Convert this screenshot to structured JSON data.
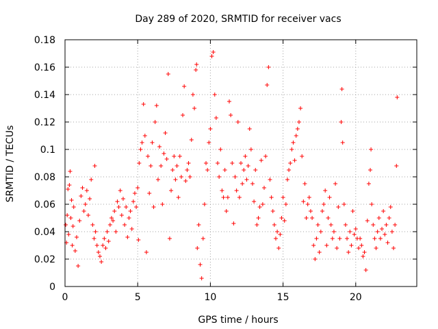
{
  "chart_data": {
    "type": "scatter",
    "title": "Day 289 of 2020, SRMTID for receiver vacs",
    "xlabel": "GPS time / hours",
    "ylabel": "SRMTID / TECUs",
    "xlim": [
      0,
      24.2
    ],
    "ylim": [
      0,
      0.18
    ],
    "xticks": [
      0,
      5,
      10,
      15,
      20
    ],
    "xtick_labels": [
      "0",
      "5",
      "10",
      "15",
      "20"
    ],
    "yticks": [
      0,
      0.02,
      0.04,
      0.06,
      0.08,
      0.1,
      0.12,
      0.14,
      0.16,
      0.18
    ],
    "ytick_labels": [
      "0",
      "0.02",
      "0.04",
      "0.06",
      "0.08",
      "0.1",
      "0.12",
      "0.14",
      "0.16",
      "0.18"
    ],
    "grid": true,
    "marker": "+",
    "color": "#ff0000",
    "series": [
      {
        "name": "SRMTID",
        "points": [
          [
            0.05,
            0.045
          ],
          [
            0.1,
            0.032
          ],
          [
            0.15,
            0.052
          ],
          [
            0.2,
            0.071
          ],
          [
            0.25,
            0.038
          ],
          [
            0.3,
            0.074
          ],
          [
            0.35,
            0.084
          ],
          [
            0.4,
            0.05
          ],
          [
            0.45,
            0.063
          ],
          [
            0.5,
            0.03
          ],
          [
            0.55,
            0.044
          ],
          [
            0.6,
            0.058
          ],
          [
            0.7,
            0.026
          ],
          [
            0.8,
            0.036
          ],
          [
            0.9,
            0.015
          ],
          [
            1.0,
            0.048
          ],
          [
            1.1,
            0.066
          ],
          [
            1.2,
            0.072
          ],
          [
            1.3,
            0.055
          ],
          [
            1.4,
            0.06
          ],
          [
            1.5,
            0.07
          ],
          [
            1.6,
            0.052
          ],
          [
            1.7,
            0.064
          ],
          [
            1.8,
            0.078
          ],
          [
            1.9,
            0.045
          ],
          [
            2.0,
            0.035
          ],
          [
            2.05,
            0.088
          ],
          [
            2.1,
            0.04
          ],
          [
            2.2,
            0.03
          ],
          [
            2.3,
            0.025
          ],
          [
            2.4,
            0.022
          ],
          [
            2.5,
            0.018
          ],
          [
            2.6,
            0.03
          ],
          [
            2.7,
            0.035
          ],
          [
            2.8,
            0.028
          ],
          [
            2.9,
            0.04
          ],
          [
            3.0,
            0.033
          ],
          [
            3.1,
            0.045
          ],
          [
            3.2,
            0.05
          ],
          [
            3.3,
            0.048
          ],
          [
            3.4,
            0.055
          ],
          [
            3.5,
            0.04
          ],
          [
            3.6,
            0.062
          ],
          [
            3.7,
            0.058
          ],
          [
            3.8,
            0.07
          ],
          [
            3.9,
            0.052
          ],
          [
            4.0,
            0.064
          ],
          [
            4.1,
            0.045
          ],
          [
            4.2,
            0.058
          ],
          [
            4.3,
            0.036
          ],
          [
            4.4,
            0.05
          ],
          [
            4.5,
            0.055
          ],
          [
            4.6,
            0.042
          ],
          [
            4.7,
            0.062
          ],
          [
            4.8,
            0.068
          ],
          [
            4.9,
            0.058
          ],
          [
            5.0,
            0.072
          ],
          [
            5.05,
            0.034
          ],
          [
            5.1,
            0.09
          ],
          [
            5.2,
            0.1
          ],
          [
            5.3,
            0.105
          ],
          [
            5.4,
            0.133
          ],
          [
            5.5,
            0.11
          ],
          [
            5.6,
            0.025
          ],
          [
            5.7,
            0.095
          ],
          [
            5.8,
            0.068
          ],
          [
            5.9,
            0.088
          ],
          [
            6.0,
            0.105
          ],
          [
            6.1,
            0.058
          ],
          [
            6.2,
            0.12
          ],
          [
            6.3,
            0.132
          ],
          [
            6.4,
            0.078
          ],
          [
            6.5,
            0.102
          ],
          [
            6.6,
            0.088
          ],
          [
            6.7,
            0.06
          ],
          [
            6.8,
            0.097
          ],
          [
            6.9,
            0.112
          ],
          [
            7.0,
            0.093
          ],
          [
            7.1,
            0.155
          ],
          [
            7.2,
            0.035
          ],
          [
            7.3,
            0.07
          ],
          [
            7.4,
            0.085
          ],
          [
            7.5,
            0.095
          ],
          [
            7.6,
            0.078
          ],
          [
            7.7,
            0.088
          ],
          [
            7.8,
            0.065
          ],
          [
            7.9,
            0.095
          ],
          [
            8.0,
            0.08
          ],
          [
            8.1,
            0.125
          ],
          [
            8.2,
            0.146
          ],
          [
            8.3,
            0.077
          ],
          [
            8.4,
            0.085
          ],
          [
            8.5,
            0.09
          ],
          [
            8.6,
            0.08
          ],
          [
            8.7,
            0.107
          ],
          [
            8.8,
            0.14
          ],
          [
            8.9,
            0.13
          ],
          [
            9.0,
            0.158
          ],
          [
            9.05,
            0.162
          ],
          [
            9.1,
            0.028
          ],
          [
            9.2,
            0.045
          ],
          [
            9.3,
            0.016
          ],
          [
            9.4,
            0.006
          ],
          [
            9.5,
            0.035
          ],
          [
            9.6,
            0.06
          ],
          [
            9.7,
            0.09
          ],
          [
            9.8,
            0.085
          ],
          [
            9.9,
            0.105
          ],
          [
            10.0,
            0.115
          ],
          [
            10.1,
            0.168
          ],
          [
            10.2,
            0.171
          ],
          [
            10.3,
            0.14
          ],
          [
            10.4,
            0.123
          ],
          [
            10.5,
            0.09
          ],
          [
            10.6,
            0.08
          ],
          [
            10.7,
            0.1
          ],
          [
            10.8,
            0.07
          ],
          [
            10.9,
            0.065
          ],
          [
            11.0,
            0.085
          ],
          [
            11.1,
            0.055
          ],
          [
            11.2,
            0.065
          ],
          [
            11.3,
            0.135
          ],
          [
            11.4,
            0.125
          ],
          [
            11.5,
            0.09
          ],
          [
            11.6,
            0.046
          ],
          [
            11.7,
            0.08
          ],
          [
            11.8,
            0.07
          ],
          [
            11.9,
            0.12
          ],
          [
            12.0,
            0.065
          ],
          [
            12.1,
            0.09
          ],
          [
            12.2,
            0.075
          ],
          [
            12.3,
            0.085
          ],
          [
            12.4,
            0.095
          ],
          [
            12.5,
            0.078
          ],
          [
            12.6,
            0.088
          ],
          [
            12.7,
            0.115
          ],
          [
            12.8,
            0.1
          ],
          [
            12.9,
            0.075
          ],
          [
            13.0,
            0.062
          ],
          [
            13.1,
            0.085
          ],
          [
            13.2,
            0.045
          ],
          [
            13.3,
            0.05
          ],
          [
            13.4,
            0.058
          ],
          [
            13.5,
            0.092
          ],
          [
            13.6,
            0.06
          ],
          [
            13.7,
            0.072
          ],
          [
            13.8,
            0.095
          ],
          [
            13.9,
            0.147
          ],
          [
            14.0,
            0.16
          ],
          [
            14.1,
            0.078
          ],
          [
            14.2,
            0.065
          ],
          [
            14.3,
            0.055
          ],
          [
            14.4,
            0.045
          ],
          [
            14.5,
            0.035
          ],
          [
            14.6,
            0.04
          ],
          [
            14.7,
            0.028
          ],
          [
            14.8,
            0.038
          ],
          [
            14.9,
            0.05
          ],
          [
            15.0,
            0.065
          ],
          [
            15.1,
            0.048
          ],
          [
            15.2,
            0.06
          ],
          [
            15.3,
            0.078
          ],
          [
            15.4,
            0.085
          ],
          [
            15.5,
            0.09
          ],
          [
            15.6,
            0.1
          ],
          [
            15.7,
            0.105
          ],
          [
            15.8,
            0.092
          ],
          [
            15.9,
            0.11
          ],
          [
            16.0,
            0.115
          ],
          [
            16.1,
            0.12
          ],
          [
            16.2,
            0.13
          ],
          [
            16.3,
            0.095
          ],
          [
            16.4,
            0.062
          ],
          [
            16.5,
            0.075
          ],
          [
            16.6,
            0.05
          ],
          [
            16.7,
            0.06
          ],
          [
            16.8,
            0.065
          ],
          [
            16.9,
            0.055
          ],
          [
            17.0,
            0.05
          ],
          [
            17.1,
            0.03
          ],
          [
            17.2,
            0.02
          ],
          [
            17.3,
            0.035
          ],
          [
            17.4,
            0.045
          ],
          [
            17.5,
            0.025
          ],
          [
            17.6,
            0.04
          ],
          [
            17.7,
            0.055
          ],
          [
            17.8,
            0.06
          ],
          [
            17.9,
            0.07
          ],
          [
            18.0,
            0.03
          ],
          [
            18.1,
            0.05
          ],
          [
            18.2,
            0.065
          ],
          [
            18.3,
            0.045
          ],
          [
            18.4,
            0.035
          ],
          [
            18.5,
            0.04
          ],
          [
            18.6,
            0.075
          ],
          [
            18.7,
            0.028
          ],
          [
            18.8,
            0.058
          ],
          [
            18.9,
            0.035
          ],
          [
            19.0,
            0.12
          ],
          [
            19.05,
            0.144
          ],
          [
            19.1,
            0.105
          ],
          [
            19.2,
            0.06
          ],
          [
            19.3,
            0.045
          ],
          [
            19.4,
            0.035
          ],
          [
            19.5,
            0.025
          ],
          [
            19.6,
            0.04
          ],
          [
            19.7,
            0.03
          ],
          [
            19.8,
            0.055
          ],
          [
            19.9,
            0.038
          ],
          [
            20.0,
            0.042
          ],
          [
            20.1,
            0.035
          ],
          [
            20.2,
            0.028
          ],
          [
            20.3,
            0.035
          ],
          [
            20.4,
            0.03
          ],
          [
            20.5,
            0.022
          ],
          [
            20.6,
            0.025
          ],
          [
            20.7,
            0.012
          ],
          [
            20.8,
            0.048
          ],
          [
            20.9,
            0.075
          ],
          [
            21.0,
            0.085
          ],
          [
            21.05,
            0.1
          ],
          [
            21.1,
            0.06
          ],
          [
            21.2,
            0.045
          ],
          [
            21.3,
            0.035
          ],
          [
            21.4,
            0.028
          ],
          [
            21.5,
            0.04
          ],
          [
            21.6,
            0.05
          ],
          [
            21.7,
            0.035
          ],
          [
            21.8,
            0.042
          ],
          [
            21.9,
            0.055
          ],
          [
            22.0,
            0.038
          ],
          [
            22.1,
            0.045
          ],
          [
            22.2,
            0.032
          ],
          [
            22.3,
            0.05
          ],
          [
            22.4,
            0.058
          ],
          [
            22.5,
            0.04
          ],
          [
            22.6,
            0.028
          ],
          [
            22.7,
            0.045
          ],
          [
            22.8,
            0.088
          ],
          [
            22.85,
            0.138
          ]
        ]
      }
    ]
  }
}
